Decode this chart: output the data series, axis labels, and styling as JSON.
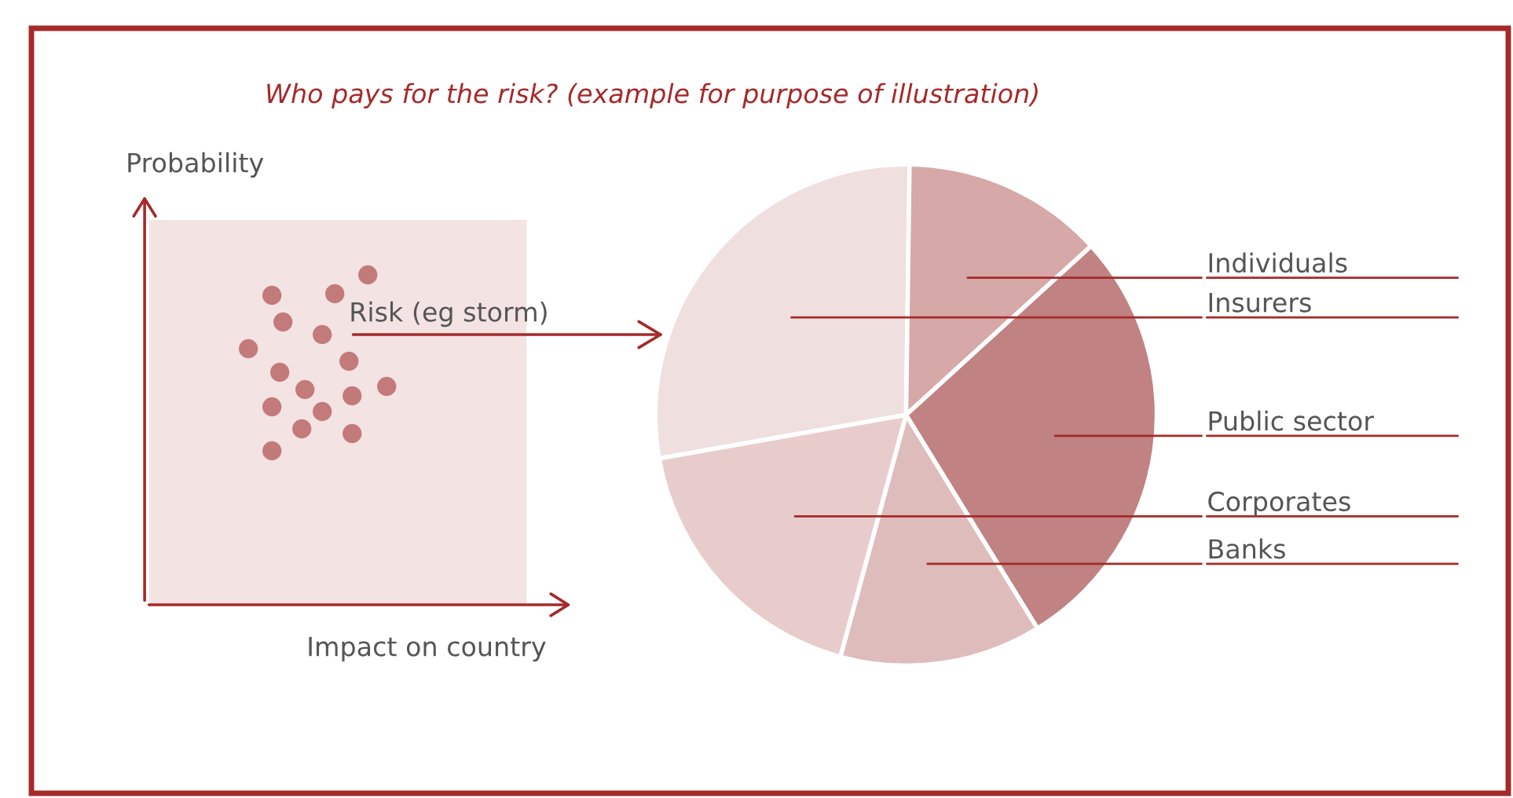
{
  "chart_data": [
    {
      "type": "other",
      "xlabel": "Impact on country",
      "ylabel": "Probability",
      "annotations": [
        "Risk (eg storm)"
      ]
    },
    {
      "type": "pie",
      "title": "Who pays for the risk? (example for purpose of illustration)",
      "categories": [
        "Insurers",
        "Individuals",
        "Public sector",
        "Banks",
        "Corporates"
      ],
      "values": [
        28,
        13,
        28,
        13,
        18
      ],
      "colors": [
        "#f0dfdf",
        "#d6a8a8",
        "#c08282",
        "#dfbcbc",
        "#e8cccc"
      ]
    }
  ]
}
